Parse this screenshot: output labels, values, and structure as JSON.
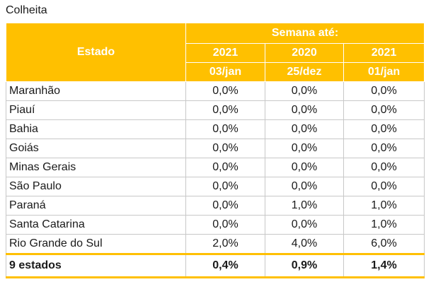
{
  "title": "Colheita",
  "header": {
    "state_label": "Estado",
    "group_label": "Semana até:",
    "columns": [
      {
        "year": "2021",
        "date": "03/jan"
      },
      {
        "year": "2020",
        "date": "25/dez"
      },
      {
        "year": "2021",
        "date": "01/jan"
      }
    ]
  },
  "rows": [
    {
      "state": "Maranhão",
      "values": [
        "0,0%",
        "0,0%",
        "0,0%"
      ]
    },
    {
      "state": "Piauí",
      "values": [
        "0,0%",
        "0,0%",
        "0,0%"
      ]
    },
    {
      "state": "Bahia",
      "values": [
        "0,0%",
        "0,0%",
        "0,0%"
      ]
    },
    {
      "state": "Goiás",
      "values": [
        "0,0%",
        "0,0%",
        "0,0%"
      ]
    },
    {
      "state": "Minas Gerais",
      "values": [
        "0,0%",
        "0,0%",
        "0,0%"
      ]
    },
    {
      "state": "São Paulo",
      "values": [
        "0,0%",
        "0,0%",
        "0,0%"
      ]
    },
    {
      "state": "Paraná",
      "values": [
        "0,0%",
        "1,0%",
        "1,0%"
      ]
    },
    {
      "state": "Santa Catarina",
      "values": [
        "0,0%",
        "0,0%",
        "1,0%"
      ]
    },
    {
      "state": "Rio Grande do Sul",
      "values": [
        "2,0%",
        "4,0%",
        "6,0%"
      ]
    }
  ],
  "total": {
    "state": "9 estados",
    "values": [
      "0,4%",
      "0,9%",
      "1,4%"
    ]
  },
  "colors": {
    "header_bg": "#ffc000",
    "header_text": "#ffffff",
    "grid": "#c8c8c8"
  }
}
